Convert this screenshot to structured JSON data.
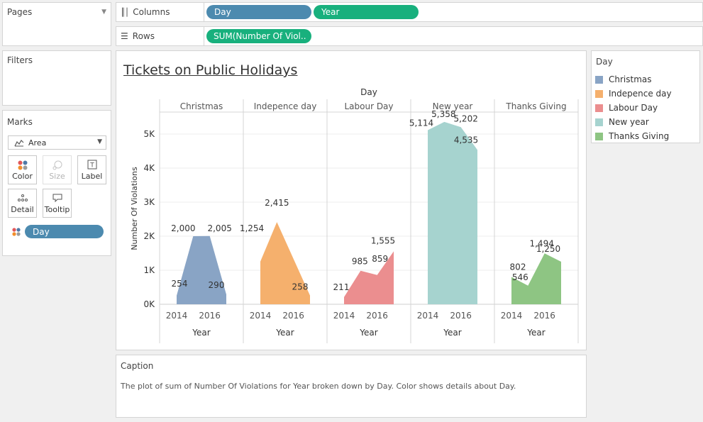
{
  "left_panel": {
    "pages": {
      "title": "Pages"
    },
    "filters": {
      "title": "Filters"
    },
    "marks": {
      "title": "Marks",
      "mark_type": "Area",
      "buttons": {
        "color": "Color",
        "size": "Size",
        "label": "Label",
        "detail": "Detail",
        "tooltip": "Tooltip"
      },
      "color_pill": "Day"
    }
  },
  "shelves": {
    "columns": {
      "label": "Columns",
      "pills": [
        "Day",
        "Year"
      ]
    },
    "rows": {
      "label": "Rows",
      "pills": [
        "SUM(Number Of Viol.."
      ]
    }
  },
  "legend": {
    "title": "Day",
    "items": [
      {
        "label": "Christmas",
        "color": "#89a4c5"
      },
      {
        "label": "Indepence day",
        "color": "#f5b06d"
      },
      {
        "label": "Labour Day",
        "color": "#eb8e8f"
      },
      {
        "label": "New year",
        "color": "#a6d3cf"
      },
      {
        "label": "Thanks Giving",
        "color": "#8ec583"
      }
    ]
  },
  "caption": {
    "title": "Caption",
    "text": "The plot of sum of Number Of Violations for Year broken down by Day.  Color shows details about Day."
  },
  "chart_data": {
    "type": "area",
    "title": "Tickets on Public Holidays",
    "column_header": "Day",
    "xlabel": "Year",
    "ylabel": "Number Of Violations",
    "x": [
      2014,
      2015,
      2016,
      2017
    ],
    "x_tick_labels": [
      "2014",
      "2016"
    ],
    "y_ticks": [
      "0K",
      "1K",
      "2K",
      "3K",
      "4K",
      "5K"
    ],
    "ylim": [
      0,
      5500
    ],
    "grid": true,
    "legend_position": "right",
    "panels": [
      {
        "name": "Christmas",
        "color": "#89a4c5",
        "values": [
          254,
          2000,
          2005,
          290
        ]
      },
      {
        "name": "Indepence day",
        "color": "#f5b06d",
        "values": [
          1254,
          2415,
          null,
          258
        ]
      },
      {
        "name": "Labour Day",
        "color": "#eb8e8f",
        "values": [
          211,
          985,
          859,
          1555
        ]
      },
      {
        "name": "New year",
        "color": "#a6d3cf",
        "values": [
          5114,
          5358,
          5202,
          4535
        ]
      },
      {
        "name": "Thanks Giving",
        "color": "#8ec583",
        "values": [
          802,
          546,
          1494,
          1250
        ]
      }
    ]
  }
}
